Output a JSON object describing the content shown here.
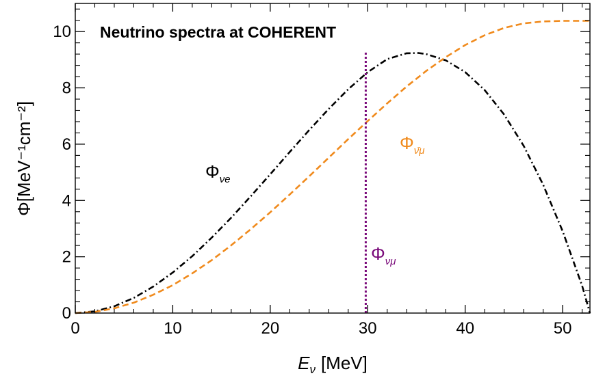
{
  "chart_data": {
    "type": "line",
    "title": "Neutrino spectra at COHERENT",
    "xlabel": {
      "symbol": "E",
      "subscript": "ν",
      "unit": "[MeV]"
    },
    "ylabel": "Φ[MeV⁻¹cm⁻²]",
    "xlim": [
      0,
      52.8
    ],
    "ylim": [
      0,
      11
    ],
    "xticks": [
      0,
      10,
      20,
      30,
      40,
      50
    ],
    "yticks": [
      0,
      2,
      4,
      6,
      8,
      10
    ],
    "grid": false,
    "colors": {
      "nu_e": "#000000",
      "nu_mu_bar": "#f08a1c",
      "nu_mu": "#7a0a7a"
    },
    "series": [
      {
        "name": "Φ_νe",
        "label": {
          "symbol": "Φ",
          "subscript": "νe"
        },
        "style": "dash-dot",
        "x": [
          0,
          2,
          4,
          6,
          8,
          10,
          12,
          14,
          16,
          18,
          20,
          22,
          24,
          26,
          28,
          30,
          32,
          34,
          35.2,
          36,
          38,
          40,
          42,
          44,
          46,
          48,
          50,
          52,
          52.8
        ],
        "y": [
          0,
          0.06,
          0.24,
          0.54,
          0.94,
          1.44,
          2.02,
          2.68,
          3.39,
          4.15,
          4.93,
          5.72,
          6.5,
          7.25,
          7.95,
          8.56,
          9.02,
          9.23,
          9.24,
          9.2,
          8.98,
          8.56,
          7.92,
          7.05,
          5.94,
          4.56,
          2.91,
          0.97,
          0
        ]
      },
      {
        "name": "Φ_ν̄μ",
        "label": {
          "symbol": "Φ",
          "subscript": "ν̄μ"
        },
        "style": "dashed",
        "x": [
          0,
          2,
          4,
          6,
          8,
          10,
          12,
          14,
          16,
          18,
          20,
          22,
          24,
          26,
          28,
          30,
          32,
          34,
          36,
          38,
          40,
          42,
          44,
          46,
          48,
          50,
          52,
          52.8
        ],
        "y": [
          0,
          0.04,
          0.17,
          0.37,
          0.65,
          0.99,
          1.41,
          1.88,
          2.41,
          2.98,
          3.58,
          4.21,
          4.86,
          5.52,
          6.18,
          6.82,
          7.45,
          8.05,
          8.6,
          9.09,
          9.52,
          9.87,
          10.13,
          10.29,
          10.36,
          10.38,
          10.38,
          10.38
        ]
      },
      {
        "name": "Φ_νμ",
        "label": {
          "symbol": "Φ",
          "subscript": "νμ"
        },
        "style": "dotted-vertical",
        "x": [
          29.8,
          29.8
        ],
        "y": [
          0,
          9.3
        ]
      }
    ]
  }
}
